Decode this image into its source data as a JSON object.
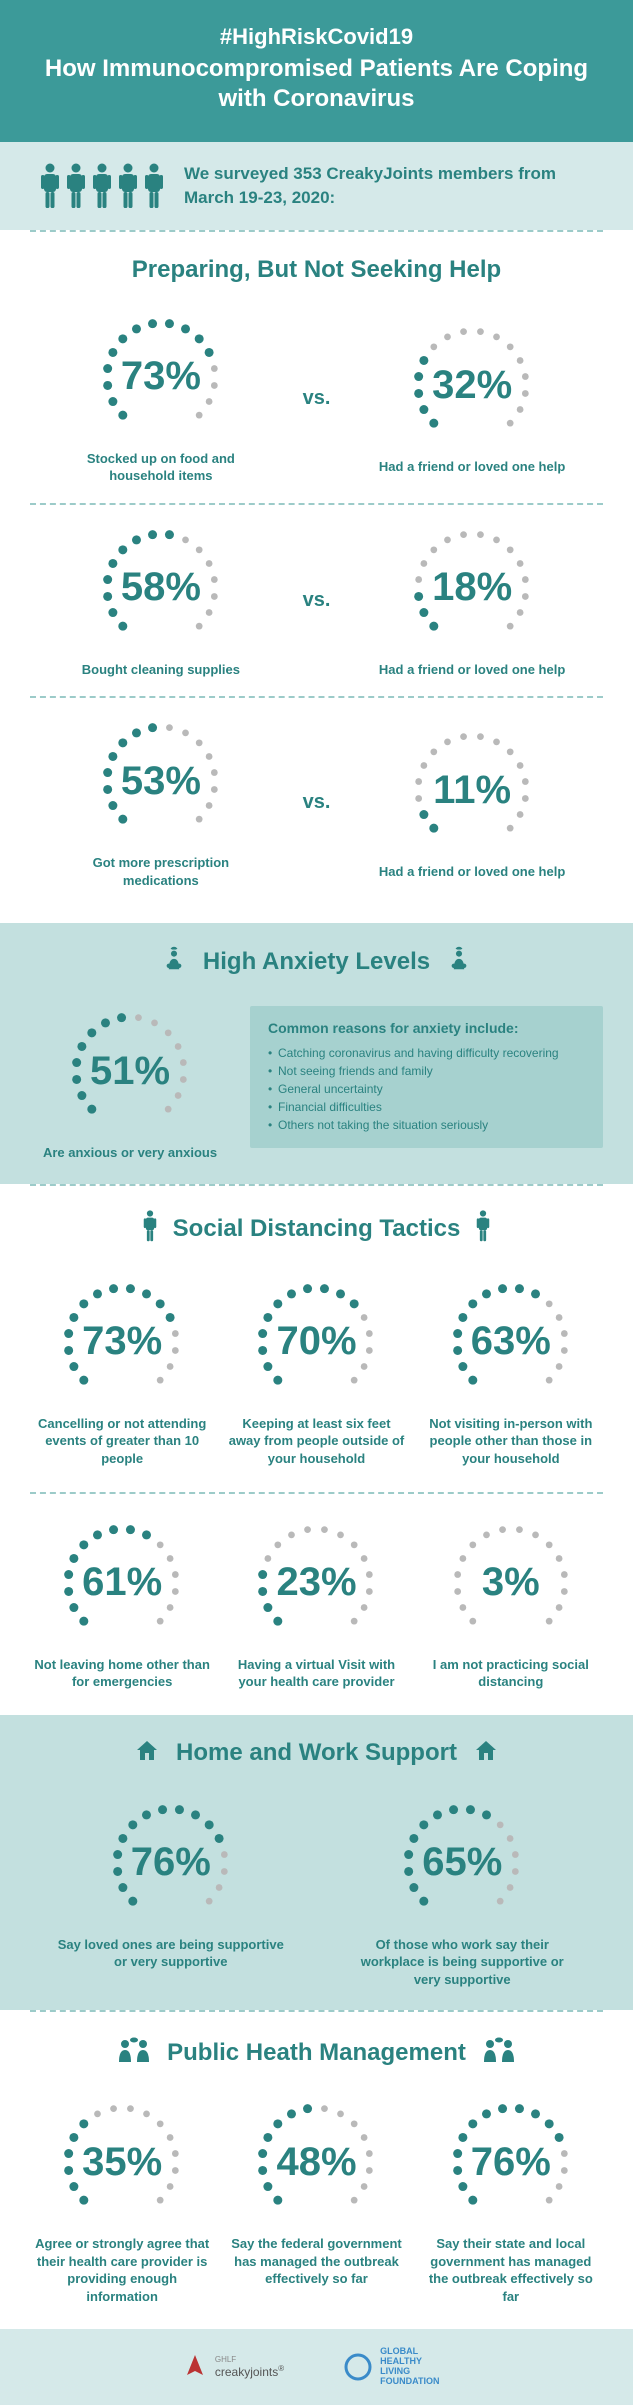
{
  "colors": {
    "teal": "#2a8280",
    "teal_light": "#3c9a99",
    "band": "#c3e0df",
    "band_light": "#d5e9e9",
    "dot_off": "#b9b9b9"
  },
  "header": {
    "hashtag": "#HighRiskCovid19",
    "title": "How Immunocompromised Patients Are Coping with Coronavirus"
  },
  "survey": {
    "people_count": 5,
    "text": "We surveyed 353 CreakyJoints members from March 19-23, 2020:"
  },
  "preparing": {
    "title": "Preparing, But Not Seeking Help",
    "vs_label": "vs.",
    "rows": [
      {
        "left": {
          "pct": 73,
          "label": "Stocked up on food and household items"
        },
        "right": {
          "pct": 32,
          "label": "Had a friend or loved one help"
        }
      },
      {
        "left": {
          "pct": 58,
          "label": "Bought cleaning supplies"
        },
        "right": {
          "pct": 18,
          "label": "Had a friend or loved one help"
        }
      },
      {
        "left": {
          "pct": 53,
          "label": "Got more prescription medications"
        },
        "right": {
          "pct": 11,
          "label": "Had a friend or loved one help"
        }
      }
    ]
  },
  "anxiety": {
    "title": "High Anxiety Levels",
    "stat": {
      "pct": 51,
      "label": "Are anxious or very anxious"
    },
    "box_title": "Common reasons for anxiety include:",
    "reasons": [
      "Catching coronavirus and having difficulty recovering",
      "Not seeing friends and family",
      "General uncertainty",
      "Financial difficulties",
      "Others not taking the situation seriously"
    ]
  },
  "distancing": {
    "title": "Social Distancing Tactics",
    "row1": [
      {
        "pct": 73,
        "label": "Cancelling or not attending events of greater than 10 people"
      },
      {
        "pct": 70,
        "label": "Keeping at least six feet away from people outside of your household"
      },
      {
        "pct": 63,
        "label": "Not visiting in-person with people other than those in your household"
      }
    ],
    "row2": [
      {
        "pct": 61,
        "label": "Not leaving home other than for emergencies"
      },
      {
        "pct": 23,
        "label": "Having a virtual Visit with your health care provider"
      },
      {
        "pct": 3,
        "label": "I am not practicing social distancing"
      }
    ]
  },
  "homework": {
    "title": "Home and Work Support",
    "items": [
      {
        "pct": 76,
        "label": "Say loved ones are being supportive or very supportive"
      },
      {
        "pct": 65,
        "label": "Of those who work say their workplace is being supportive or very supportive"
      }
    ]
  },
  "publichealth": {
    "title": "Public Heath Management",
    "items": [
      {
        "pct": 35,
        "label": "Agree or strongly agree that their health care provider is providing enough information"
      },
      {
        "pct": 48,
        "label": "Say the federal government has managed the outbreak effectively so far"
      },
      {
        "pct": 76,
        "label": "Say their state and local government has managed the outbreak effectively so far"
      }
    ]
  },
  "footer": {
    "logo1_top": "GHLF",
    "logo1": "creakyjoints",
    "logo2": "GLOBAL HEALTHY LIVING FOUNDATION"
  },
  "dial_style": {
    "total_dots": 16,
    "dot_radius": 4.5,
    "arc_radius": 54,
    "start_angle_deg": 135,
    "sweep_deg": 270,
    "font_size_pct": 40
  }
}
